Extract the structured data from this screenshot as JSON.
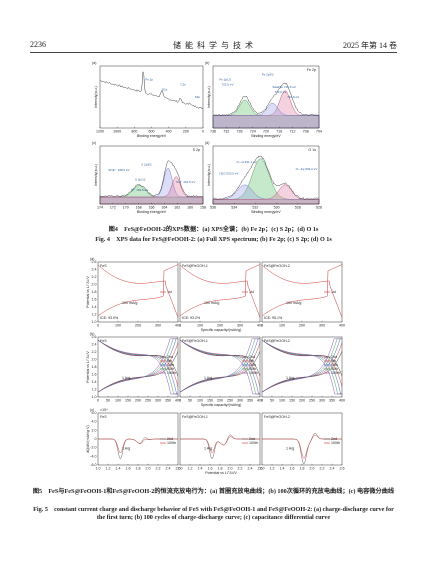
{
  "header": {
    "page": "2236",
    "journal": "储 能 科 学 与 技 术",
    "issue": "2025 年第 14 卷"
  },
  "figure4": {
    "panels": [
      {
        "label": "(a)",
        "tag": "",
        "ylabel": "Intensity(a.u.)",
        "xlabel": "Binding energy/eV",
        "xticks": [
          "1200",
          "1000",
          "800",
          "600",
          "400",
          "200",
          "0"
        ],
        "notes": [
          "Fe 2p",
          "O1s",
          "C1s",
          "S2p"
        ]
      },
      {
        "label": "(b)",
        "tag": "Fe 2p",
        "ylabel": "Intensity(a.u.)",
        "xlabel": "Binding energy/eV",
        "xticks": [
          "736",
          "732",
          "728",
          "724",
          "720",
          "716",
          "712",
          "708",
          "704"
        ],
        "notes": [
          "Fe 2p1/2",
          "Fe 2p3/2",
          "723.5 eV",
          "Satellite 719.6 eV",
          "713.0 eV",
          "710.9 eV"
        ]
      },
      {
        "label": "(c)",
        "tag": "S 2p",
        "ylabel": "Intensity(a.u.)",
        "xlabel": "Binding energy/eV",
        "xticks": [
          "174",
          "172",
          "170",
          "168",
          "166",
          "164",
          "162",
          "160",
          "158"
        ],
        "notes": [
          "SO4²⁻ 168.0 eV",
          "S 2p3/2",
          "S 2p1/2",
          "S²⁻ 162.5 eV",
          "Sn²⁻ 161.5 eV"
        ]
      },
      {
        "label": "(d)",
        "tag": "O 1s",
        "ylabel": "Intensity(a.u.)",
        "xlabel": "Binding energy/eV",
        "xticks": [
          "536",
          "534",
          "532",
          "530",
          "528",
          "526"
        ],
        "notes": [
          "O—H 531.1 eV",
          "H2O 533.0 eV",
          "O—Fe 529.2 eV"
        ]
      }
    ],
    "caption_cn": "图4　FeS@FeOOH-2的XPS数据：(a) XPS全谱；(b) Fe 2p；(c) S 2p；(d) O 1s",
    "caption_en": "Fig. 4　XPS data for FeS@FeOOH-2: (a) Full XPS spectrum; (b) Fe 2p; (c) S 2p; (d) O 1s"
  },
  "figure5": {
    "names": [
      "FeS",
      "FeS@FeOOH-1",
      "FeS@FeOOH-2"
    ],
    "rows": [
      {
        "label": "(a)",
        "ylabel": "Potential vs Li⁺/Li/V",
        "xlabel": "Specific capacity/(mAh/g)",
        "yticks": [
          "2.6",
          "2.4",
          "2.2",
          "2.0",
          "1.8",
          "1.6",
          "1.4",
          "1.2",
          "1.0"
        ],
        "xticks": [
          "0",
          "100",
          "200",
          "300",
          "400"
        ],
        "legend": [
          "1st"
        ],
        "rate": "100 mA/g",
        "ice": [
          "ICE: 93.0%",
          "ICE: 93.2%",
          "ICE: 95.1%"
        ]
      },
      {
        "label": "(b)",
        "ylabel": "Potential vs Li⁺/Li/V",
        "xlabel": "Specific capacity/(mAh/g)",
        "yticks": [
          "2.6",
          "2.4",
          "2.2",
          "2.0",
          "1.8",
          "1.6",
          "1.4",
          "1.2",
          "1.0"
        ],
        "xticks": [
          "0",
          "50",
          "100",
          "150",
          "200",
          "250",
          "300",
          "350",
          "400"
        ],
        "legend": [
          "2nd",
          "5th",
          "10th",
          "50th",
          "100th"
        ],
        "rate": "1 A/g"
      },
      {
        "label": "(c)",
        "ylabel": "dQ/dV/(mAh/g·V)",
        "xlabel": "Potential vs Li⁺/Li/V",
        "multiplier": "×10⁴",
        "yticks": [
          "6.0",
          "4.0",
          "2.0",
          "0",
          "-2.0",
          "-4.0",
          "-6.0"
        ],
        "xticks": [
          "1.0",
          "1.2",
          "1.4",
          "1.6",
          "1.8",
          "2.0",
          "2.2",
          "2.4",
          "2.6"
        ],
        "legend": [
          "2nd",
          "100th"
        ],
        "rate": "1 A/g"
      }
    ],
    "caption_cn": "图5　FeS与FeS@FeOOH-1和FeS@FeOOH-2的恒流充放电行为：(a) 首圈充放电曲线；(b) 100次循环的充放电曲线；(c) 电容微分曲线",
    "caption_en": "Fig. 5　constant current charge and discharge behavior of FeS with FeS@FeOOH-1 and FeS@FeOOH-2: (a) charge-discharge curve for the first turn; (b) 100 cycles of charge-discharge curve; (c) capacitance differential curve"
  }
}
